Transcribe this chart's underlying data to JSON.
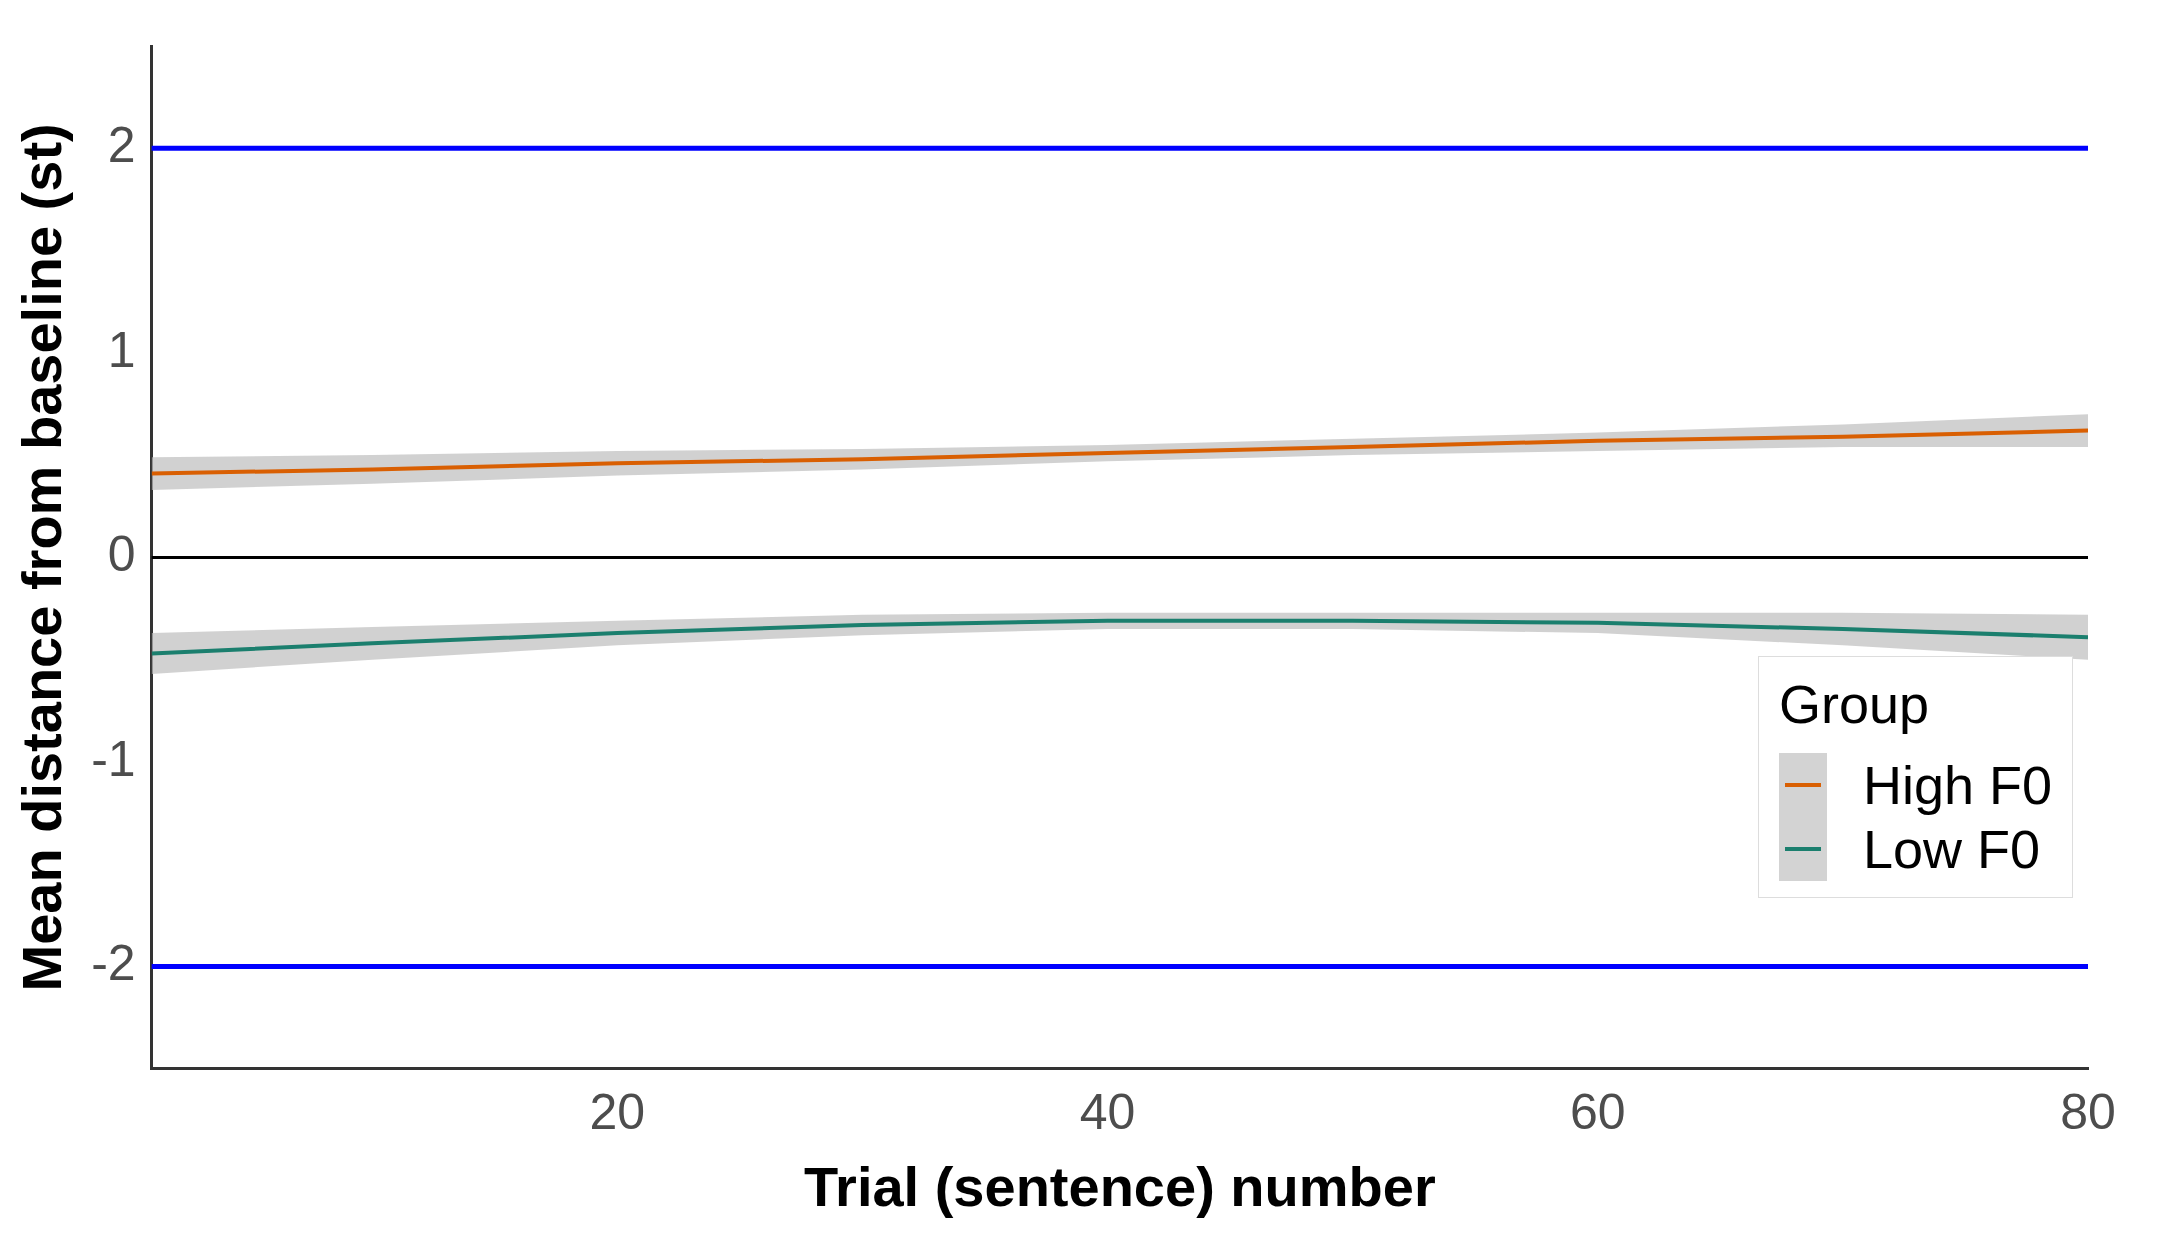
{
  "chart_data": {
    "type": "line",
    "xlabel": "Trial (sentence) number",
    "ylabel": "Mean distance from baseline (st)",
    "legend_title": "Group",
    "xlim": [
      1,
      80
    ],
    "xticks": [
      20,
      40,
      60,
      80
    ],
    "ylim": [
      -2.5,
      2.5
    ],
    "yticks": [
      -2,
      -1,
      0,
      1,
      2
    ],
    "grid": false,
    "legend": "bottom right",
    "marker": "none",
    "line_style": "solid",
    "x": [
      1,
      10,
      20,
      30,
      40,
      50,
      60,
      70,
      80
    ],
    "series": [
      {
        "name": "High F0",
        "color": "#d95f02",
        "values": [
          0.41,
          0.43,
          0.46,
          0.48,
          0.51,
          0.54,
          0.57,
          0.59,
          0.62
        ],
        "lower": [
          0.33,
          0.36,
          0.4,
          0.43,
          0.47,
          0.5,
          0.52,
          0.54,
          0.54
        ],
        "upper": [
          0.49,
          0.5,
          0.52,
          0.53,
          0.55,
          0.58,
          0.61,
          0.65,
          0.7
        ]
      },
      {
        "name": "Low F0",
        "color": "#1b7f6e",
        "values": [
          -0.47,
          -0.42,
          -0.37,
          -0.33,
          -0.31,
          -0.31,
          -0.32,
          -0.35,
          -0.39
        ],
        "lower": [
          -0.57,
          -0.5,
          -0.43,
          -0.38,
          -0.35,
          -0.35,
          -0.37,
          -0.43,
          -0.5
        ],
        "upper": [
          -0.37,
          -0.34,
          -0.31,
          -0.28,
          -0.27,
          -0.27,
          -0.27,
          -0.27,
          -0.28
        ]
      }
    ],
    "ref_lines": [
      {
        "axis": "y",
        "value": 2,
        "color": "#0000ff"
      },
      {
        "axis": "y",
        "value": 0,
        "color": "#000000"
      },
      {
        "axis": "y",
        "value": -2,
        "color": "#0000ff"
      }
    ]
  }
}
